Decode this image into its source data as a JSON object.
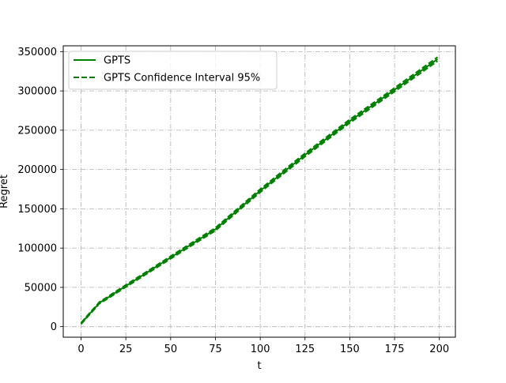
{
  "chart_data": {
    "type": "line",
    "title": "",
    "xlabel": "t",
    "ylabel": "Regret",
    "xlim": [
      -9.95,
      208.95
    ],
    "ylim": [
      -13400,
      357400
    ],
    "xticks": [
      0,
      25,
      50,
      75,
      100,
      125,
      150,
      175,
      200
    ],
    "yticks": [
      0,
      50000,
      100000,
      150000,
      200000,
      250000,
      300000,
      350000
    ],
    "grid": true,
    "grid_style": "dashdot",
    "legend_position": "upper-left",
    "colors": {
      "series": "#008000",
      "grid": "#b0b0b0"
    },
    "series": [
      {
        "name": "GPTS",
        "style": "solid",
        "x": [
          0,
          5,
          9,
          10,
          15,
          20,
          30,
          40,
          50,
          60,
          75,
          100,
          125,
          150,
          175,
          199
        ],
        "y": [
          4000,
          17000,
          27000,
          30000,
          37000,
          44500,
          59000,
          73500,
          88000,
          102500,
          124000,
          173000,
          218500,
          261500,
          301500,
          340500
        ]
      },
      {
        "name": "GPTS Confidence Interval 95%",
        "style": "dashed",
        "x": [
          0,
          5,
          9,
          10,
          15,
          20,
          30,
          40,
          50,
          60,
          75,
          100,
          125,
          150,
          175,
          199
        ],
        "y": [
          4800,
          18000,
          28000,
          31000,
          38200,
          45800,
          60400,
          75000,
          89600,
          104200,
          125800,
          175000,
          220600,
          263700,
          303800,
          343000
        ]
      },
      {
        "name": "GPTS Confidence Interval 95%",
        "style": "dashed",
        "x": [
          0,
          5,
          9,
          10,
          15,
          20,
          30,
          40,
          50,
          60,
          75,
          100,
          125,
          150,
          175,
          199
        ],
        "y": [
          3200,
          16000,
          26000,
          29000,
          35800,
          43200,
          57600,
          72000,
          86400,
          100800,
          122200,
          171000,
          216400,
          259300,
          299200,
          338000
        ]
      }
    ]
  }
}
